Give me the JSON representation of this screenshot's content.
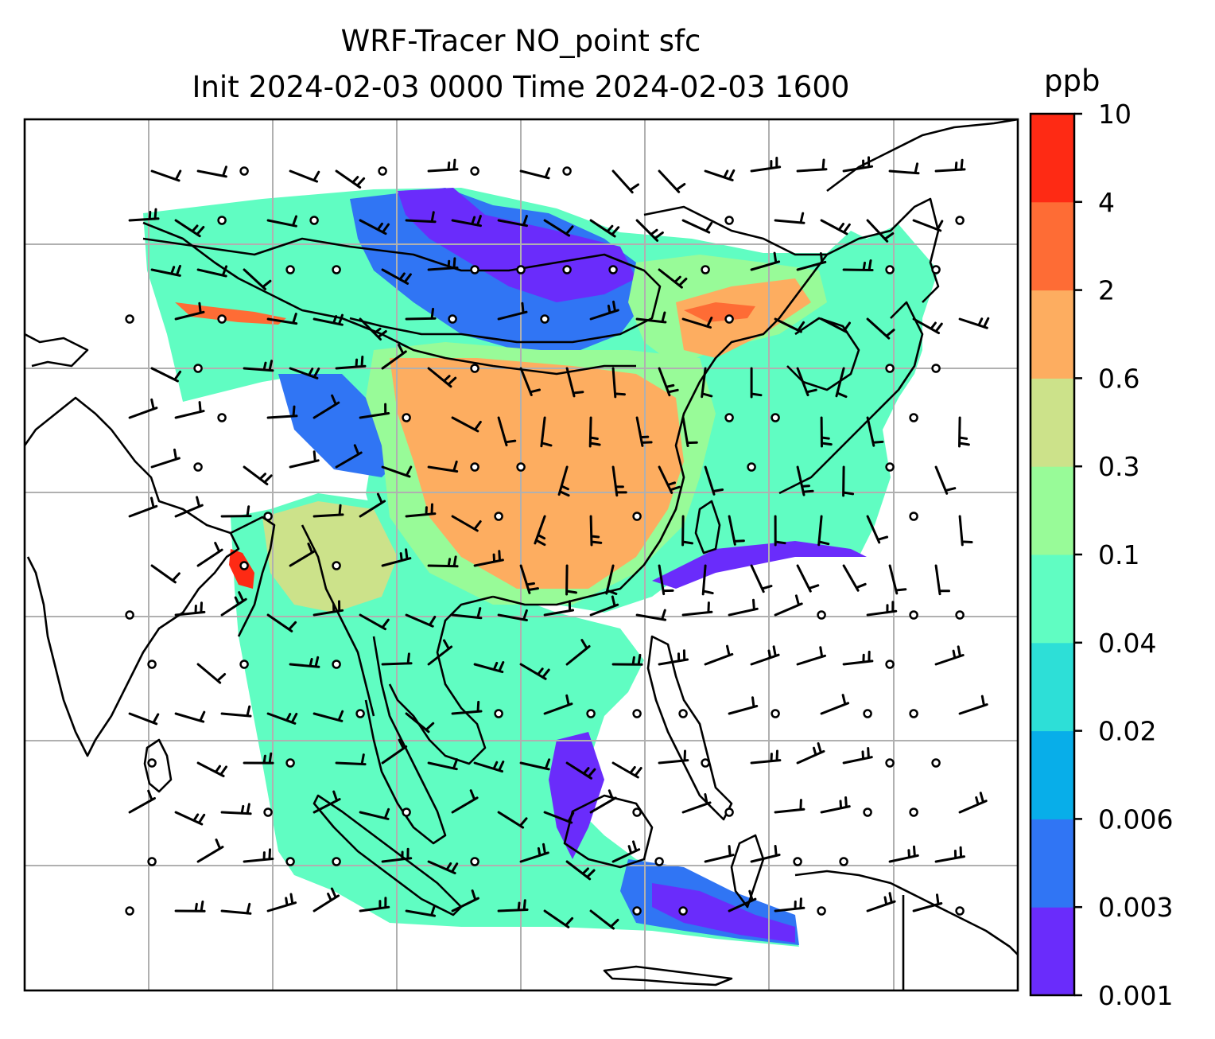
{
  "title": {
    "line1": "WRF-Tracer NO_point sfc",
    "line2": "Init 2024-02-03 0000 Time 2024-02-03 1600"
  },
  "colorbar": {
    "unit": "ppb",
    "levels": [
      "0.001",
      "0.003",
      "0.006",
      "0.02",
      "0.04",
      "0.1",
      "0.3",
      "0.6",
      "2",
      "4",
      "10"
    ],
    "colors": [
      "#6a2cfb",
      "#3075f4",
      "#08aee9",
      "#2ddfd7",
      "#60fdc2",
      "#98fb98",
      "#cce28a",
      "#fdad60",
      "#fe6c35",
      "#fe2a14"
    ]
  },
  "map": {
    "background": "#ffffff",
    "coastline_color": "#000000",
    "gridline_color": "#b0b0b0",
    "layers": [
      "coastlines",
      "country-borders",
      "gridlines",
      "tracer-concentration-filled",
      "wind-barbs",
      "calm-wind-circles"
    ]
  }
}
